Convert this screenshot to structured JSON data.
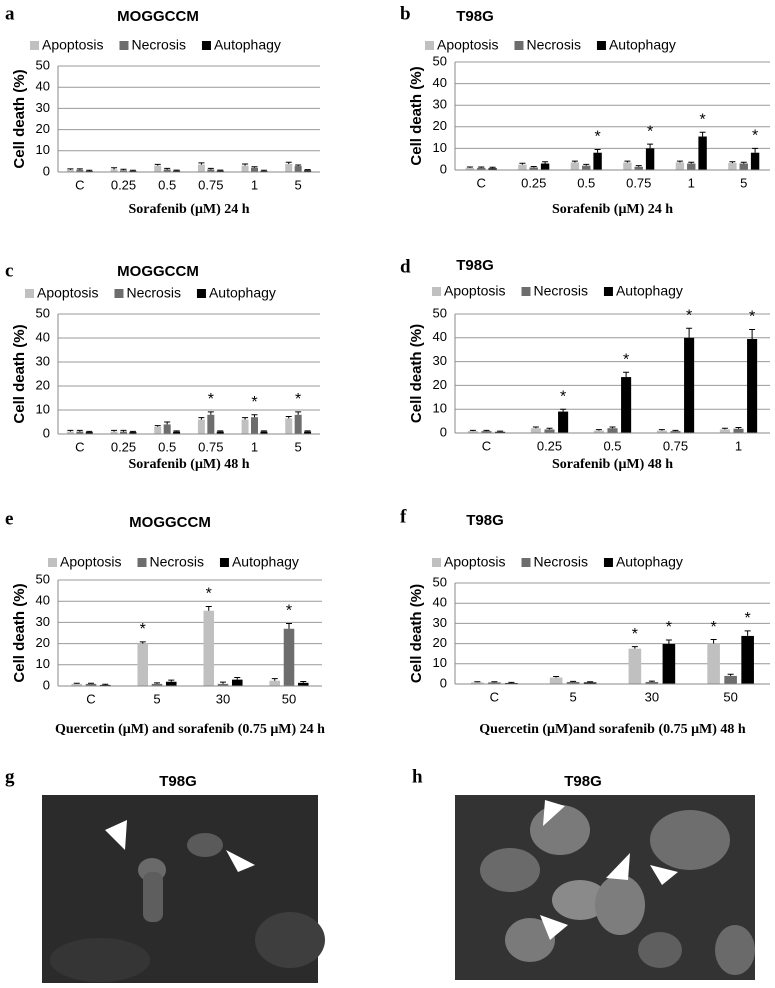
{
  "chart_data": [
    {
      "type": "bar",
      "panel": "a",
      "title": "MOGGCCM",
      "xlabel": "Sorafenib (μM) 24 h",
      "ylabel": "Cell death (%)",
      "categories": [
        "C",
        "0.25",
        "0.5",
        "0.75",
        "1",
        "5"
      ],
      "series": [
        {
          "name": "Apoptosis",
          "color": "#c0c0c0",
          "values": [
            1,
            1.2,
            3,
            3.5,
            3,
            3.8
          ],
          "errors": [
            0.5,
            0.8,
            0.6,
            0.8,
            0.8,
            0.8
          ],
          "markers": [
            null,
            null,
            null,
            null,
            null,
            null
          ]
        },
        {
          "name": "Necrosis",
          "color": "#6d6d6d",
          "values": [
            1,
            0.8,
            1.2,
            1.2,
            2,
            2.8
          ],
          "errors": [
            0.5,
            0.5,
            0.5,
            0.5,
            0.5,
            0.5
          ],
          "markers": [
            null,
            null,
            null,
            null,
            null,
            null
          ]
        },
        {
          "name": "Autophagy",
          "color": "#000000",
          "values": [
            0.5,
            0.5,
            0.6,
            0.6,
            0.5,
            0.8
          ],
          "errors": [
            0.3,
            0.3,
            0.3,
            0.3,
            0.3,
            0.3
          ],
          "markers": [
            null,
            null,
            null,
            null,
            null,
            null
          ]
        }
      ],
      "ylim": [
        0,
        50
      ],
      "yticks": [
        0,
        10,
        20,
        30,
        40,
        50
      ],
      "grid": true
    },
    {
      "type": "bar",
      "panel": "b",
      "title": "T98G",
      "xlabel": "Sorafenib (μM) 24 h",
      "ylabel": "Cell death (%)",
      "categories": [
        "C",
        "0.25",
        "0.5",
        "0.75",
        "1",
        "5"
      ],
      "series": [
        {
          "name": "Apoptosis",
          "color": "#c0c0c0",
          "values": [
            1,
            2.5,
            3.5,
            3.5,
            3.5,
            3.2
          ],
          "errors": [
            0.4,
            0.6,
            0.6,
            0.6,
            0.6,
            0.6
          ],
          "markers": [
            null,
            null,
            null,
            null,
            null,
            null
          ]
        },
        {
          "name": "Necrosis",
          "color": "#6d6d6d",
          "values": [
            1,
            1.2,
            2,
            1.5,
            3,
            3
          ],
          "errors": [
            0.4,
            0.4,
            0.6,
            0.5,
            0.6,
            0.6
          ],
          "markers": [
            null,
            null,
            null,
            null,
            null,
            null
          ]
        },
        {
          "name": "Autophagy",
          "color": "#000000",
          "values": [
            0.8,
            3,
            8,
            10,
            15.5,
            8
          ],
          "errors": [
            0.5,
            0.8,
            1.5,
            2,
            2,
            2
          ],
          "markers": [
            null,
            null,
            "*",
            "*",
            "*",
            "*"
          ]
        }
      ],
      "ylim": [
        0,
        50
      ],
      "yticks": [
        0,
        10,
        20,
        30,
        40,
        50
      ],
      "grid": true
    },
    {
      "type": "bar",
      "panel": "c",
      "title": "MOGGCCM",
      "xlabel": "Sorafenib (μM) 48 h",
      "ylabel": "Cell death (%)",
      "categories": [
        "C",
        "0.25",
        "0.5",
        "0.75",
        "1",
        "5"
      ],
      "series": [
        {
          "name": "Apoptosis",
          "color": "#c0c0c0",
          "values": [
            1,
            1,
            3,
            6,
            6,
            6.5
          ],
          "errors": [
            0.5,
            0.5,
            0.5,
            0.8,
            0.8,
            0.8
          ],
          "markers": [
            null,
            null,
            null,
            null,
            null,
            null
          ]
        },
        {
          "name": "Necrosis",
          "color": "#6d6d6d",
          "values": [
            1,
            1,
            4,
            8,
            7,
            8
          ],
          "errors": [
            0.5,
            0.5,
            1,
            1.2,
            1,
            1.2
          ],
          "markers": [
            null,
            null,
            null,
            "*",
            "*",
            "*"
          ]
        },
        {
          "name": "Autophagy",
          "color": "#000000",
          "values": [
            0.8,
            0.8,
            1,
            1,
            1,
            1
          ],
          "errors": [
            0.3,
            0.3,
            0.3,
            0.3,
            0.3,
            0.3
          ],
          "markers": [
            null,
            null,
            null,
            null,
            null,
            null
          ]
        }
      ],
      "ylim": [
        0,
        50
      ],
      "yticks": [
        0,
        10,
        20,
        30,
        40,
        50
      ],
      "grid": true
    },
    {
      "type": "bar",
      "panel": "d",
      "title": "T98G",
      "xlabel": "Sorafenib (μM) 48 h",
      "ylabel": "Cell death (%)",
      "categories": [
        "C",
        "0.25",
        "0.5",
        "0.75",
        "1"
      ],
      "series": [
        {
          "name": "Apoptosis",
          "color": "#c0c0c0",
          "values": [
            0.8,
            2,
            1,
            1,
            1.5
          ],
          "errors": [
            0.3,
            0.5,
            0.4,
            0.4,
            0.5
          ],
          "markers": [
            null,
            null,
            null,
            null,
            null
          ]
        },
        {
          "name": "Necrosis",
          "color": "#6d6d6d",
          "values": [
            0.8,
            1.5,
            2,
            0.8,
            1.8
          ],
          "errors": [
            0.3,
            0.5,
            0.5,
            0.3,
            0.5
          ],
          "markers": [
            null,
            null,
            null,
            null,
            null
          ]
        },
        {
          "name": "Autophagy",
          "color": "#000000",
          "values": [
            0.5,
            9,
            23.5,
            40,
            39.5
          ],
          "errors": [
            0.3,
            1,
            2,
            4,
            4
          ],
          "markers": [
            null,
            "*",
            "*",
            "*",
            "*"
          ]
        }
      ],
      "ylim": [
        0,
        50
      ],
      "yticks": [
        0,
        10,
        20,
        30,
        40,
        50
      ],
      "grid": true
    },
    {
      "type": "bar",
      "panel": "e",
      "title": "MOGGCCM",
      "xlabel": "Quercetin (μM) and sorafenib (0.75 μM) 24 h",
      "ylabel": "Cell death (%)",
      "categories": [
        "C",
        "5",
        "30",
        "50"
      ],
      "series": [
        {
          "name": "Apoptosis",
          "color": "#c0c0c0",
          "values": [
            1,
            20,
            35.5,
            2.5
          ],
          "errors": [
            0.3,
            0.8,
            2,
            1
          ],
          "markers": [
            null,
            "*",
            "*",
            null
          ]
        },
        {
          "name": "Necrosis",
          "color": "#6d6d6d",
          "values": [
            1,
            1,
            1,
            27
          ],
          "errors": [
            0.3,
            0.5,
            0.8,
            2.5
          ],
          "markers": [
            null,
            null,
            null,
            "*"
          ]
        },
        {
          "name": "Autophagy",
          "color": "#000000",
          "values": [
            0.5,
            2,
            3,
            1.5
          ],
          "errors": [
            0.3,
            0.8,
            1,
            0.6
          ],
          "markers": [
            null,
            null,
            null,
            null
          ]
        }
      ],
      "ylim": [
        0,
        50
      ],
      "yticks": [
        0,
        10,
        20,
        30,
        40,
        50
      ],
      "grid": true
    },
    {
      "type": "bar",
      "panel": "f",
      "title": "T98G",
      "xlabel": "Quercetin (μM)and sorafenib (0.75 μM) 48 h",
      "ylabel": "Cell death (%)",
      "categories": [
        "C",
        "5",
        "30",
        "50"
      ],
      "series": [
        {
          "name": "Apoptosis",
          "color": "#c0c0c0",
          "values": [
            0.8,
            3.2,
            17.5,
            20
          ],
          "errors": [
            0.3,
            0.5,
            1,
            2
          ],
          "markers": [
            null,
            null,
            "*",
            "*"
          ]
        },
        {
          "name": "Necrosis",
          "color": "#6d6d6d",
          "values": [
            0.8,
            1,
            1,
            4
          ],
          "errors": [
            0.3,
            0.3,
            0.4,
            0.8
          ],
          "markers": [
            null,
            null,
            null,
            null
          ]
        },
        {
          "name": "Autophagy",
          "color": "#000000",
          "values": [
            0.5,
            0.8,
            19.8,
            23.8
          ],
          "errors": [
            0.3,
            0.3,
            2,
            2.5
          ],
          "markers": [
            null,
            null,
            "*",
            "*"
          ]
        }
      ],
      "ylim": [
        0,
        50
      ],
      "yticks": [
        0,
        10,
        20,
        30,
        40,
        50
      ],
      "grid": true
    }
  ],
  "images": [
    {
      "panel": "g",
      "title": "T98G"
    },
    {
      "panel": "h",
      "title": "T98G"
    }
  ]
}
